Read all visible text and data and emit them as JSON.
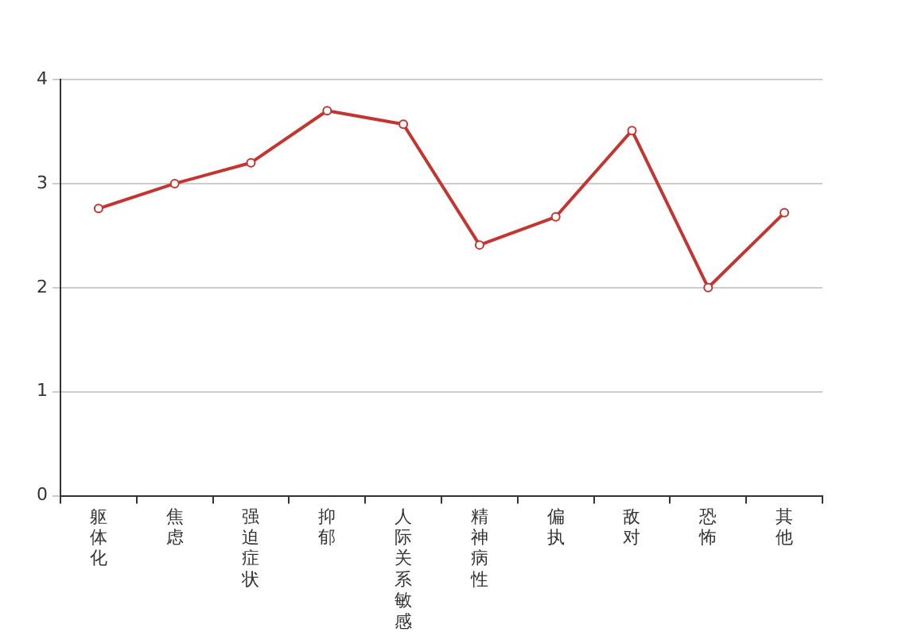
{
  "chart_data": {
    "type": "line",
    "categories": [
      "躯体化",
      "焦虑",
      "强迫症状",
      "抑郁",
      "人际关系敏感",
      "精神病性",
      "偏执",
      "敌对",
      "恐怖",
      "其他"
    ],
    "series": [
      {
        "color": "#c23531",
        "values": [
          2.76,
          3.0,
          3.2,
          3.7,
          3.57,
          2.41,
          2.68,
          3.51,
          2.0,
          2.72
        ]
      }
    ],
    "ylim": [
      0,
      4
    ],
    "yticks": [
      0,
      1,
      2,
      3,
      4
    ],
    "grid": "y",
    "marker": "circle",
    "line_style": "solid",
    "legend": false
  }
}
